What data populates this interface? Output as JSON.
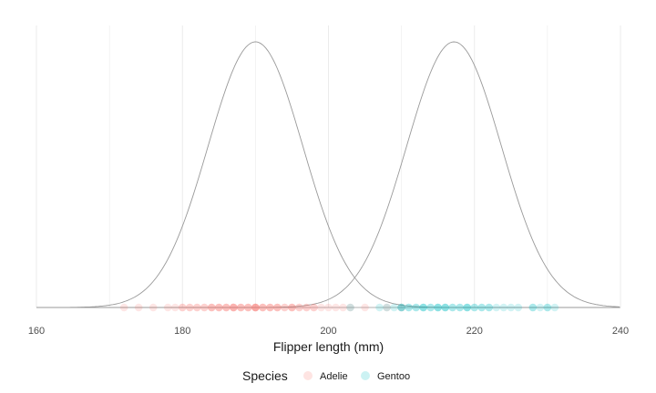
{
  "chart_data": {
    "type": "scatter",
    "title": "",
    "xlabel": "Flipper length (mm)",
    "ylabel": "",
    "xlim": [
      160,
      240
    ],
    "x_ticks": [
      160,
      180,
      200,
      220,
      240
    ],
    "grid": true,
    "legend": {
      "title": "Species",
      "placement": "bottom"
    },
    "density_curves": [
      {
        "series": "Adelie",
        "mean": 190,
        "sd": 6.5,
        "color": "#999999"
      },
      {
        "series": "Gentoo",
        "mean": 217.2,
        "sd": 6.5,
        "color": "#999999"
      }
    ],
    "series": [
      {
        "name": "Adelie",
        "color": "#F8766D",
        "x": [
          172,
          174,
          176,
          178,
          179,
          180,
          180,
          181,
          181,
          182,
          182,
          183,
          183,
          184,
          184,
          184,
          185,
          185,
          185,
          186,
          186,
          186,
          187,
          187,
          187,
          187,
          188,
          188,
          188,
          189,
          189,
          189,
          190,
          190,
          190,
          190,
          190,
          191,
          191,
          191,
          192,
          192,
          192,
          193,
          193,
          193,
          194,
          194,
          195,
          195,
          195,
          196,
          196,
          197,
          197,
          198,
          198,
          199,
          200,
          201,
          202,
          203,
          205,
          208,
          210
        ]
      },
      {
        "name": "Gentoo",
        "color": "#00BFC4",
        "x": [
          203,
          207,
          208,
          209,
          210,
          210,
          210,
          211,
          211,
          212,
          212,
          213,
          213,
          213,
          214,
          214,
          215,
          215,
          215,
          216,
          216,
          216,
          217,
          217,
          218,
          218,
          219,
          219,
          219,
          220,
          220,
          221,
          221,
          222,
          222,
          223,
          224,
          225,
          226,
          228,
          228,
          229,
          230,
          230,
          231
        ]
      }
    ]
  }
}
